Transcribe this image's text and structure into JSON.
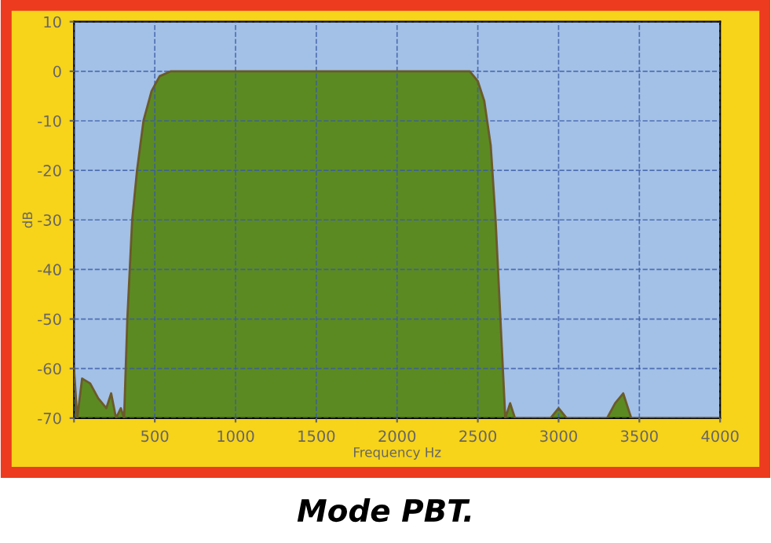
{
  "chart_data": {
    "type": "area",
    "title": "Mode PBT.",
    "xlabel": "Frequency Hz",
    "ylabel": "dB",
    "x": [
      0,
      20,
      50,
      100,
      150,
      200,
      230,
      260,
      290,
      310,
      330,
      360,
      390,
      430,
      480,
      530,
      600,
      2450,
      2500,
      2540,
      2580,
      2610,
      2640,
      2670,
      2700,
      2730,
      2950,
      3000,
      3050,
      3300,
      3350,
      3400,
      3450,
      4000
    ],
    "series": [
      {
        "color": "#5b8a22",
        "values": [
          -60,
          -70,
          -62,
          -63,
          -66,
          -68,
          -65,
          -70,
          -68,
          -70,
          -50,
          -30,
          -20,
          -10,
          -4,
          -1,
          0,
          0,
          -2,
          -6,
          -15,
          -30,
          -50,
          -70,
          -67,
          -70,
          -70,
          -68,
          -70,
          -70,
          -67,
          -65,
          -70,
          -70
        ]
      }
    ],
    "xlim": [
      0,
      4000
    ],
    "xticks": [
      {
        "value": 0,
        "label": null
      },
      500,
      1000,
      1500,
      2000,
      2500,
      3000,
      3500,
      4000
    ],
    "ylim": [
      -70,
      10
    ],
    "yticks": [
      -70,
      -60,
      -50,
      -40,
      -30,
      -20,
      -10,
      0,
      10
    ],
    "grid": true,
    "legend": false
  }
}
